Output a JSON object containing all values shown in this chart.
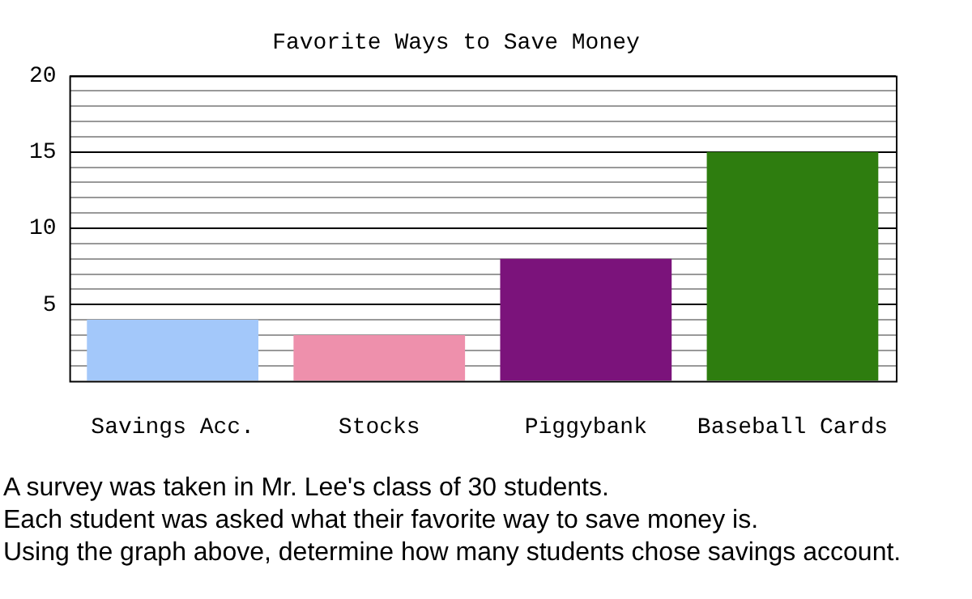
{
  "chart_data": {
    "type": "bar",
    "title": "Favorite Ways to Save Money",
    "categories": [
      "Savings Acc.",
      "Stocks",
      "Piggybank",
      "Baseball Cards"
    ],
    "values": [
      4,
      3,
      8,
      15
    ],
    "colors": [
      "#a3c8fa",
      "#ee90ac",
      "#7b137b",
      "#2e7d0f"
    ],
    "ylim": [
      0,
      20
    ],
    "yticks": [
      {
        "value": 1,
        "label": null
      },
      {
        "value": 2,
        "label": null
      },
      {
        "value": 3,
        "label": null
      },
      {
        "value": 4,
        "label": null
      },
      5,
      {
        "value": 6,
        "label": null
      },
      {
        "value": 7,
        "label": null
      },
      {
        "value": 8,
        "label": null
      },
      {
        "value": 9,
        "label": null
      },
      10,
      {
        "value": 11,
        "label": null
      },
      {
        "value": 12,
        "label": null
      },
      {
        "value": 13,
        "label": null
      },
      {
        "value": 14,
        "label": null
      },
      15,
      {
        "value": 16,
        "label": null
      },
      {
        "value": 17,
        "label": null
      },
      {
        "value": 18,
        "label": null
      },
      {
        "value": 19,
        "label": null
      },
      20
    ],
    "grid": "y",
    "annotations": [
      "A survey was taken in Mr. Lee's class of 30 students.",
      "Each student was asked what their favorite way to save money is.",
      "Using the graph above, determine how many students chose savings account."
    ]
  }
}
